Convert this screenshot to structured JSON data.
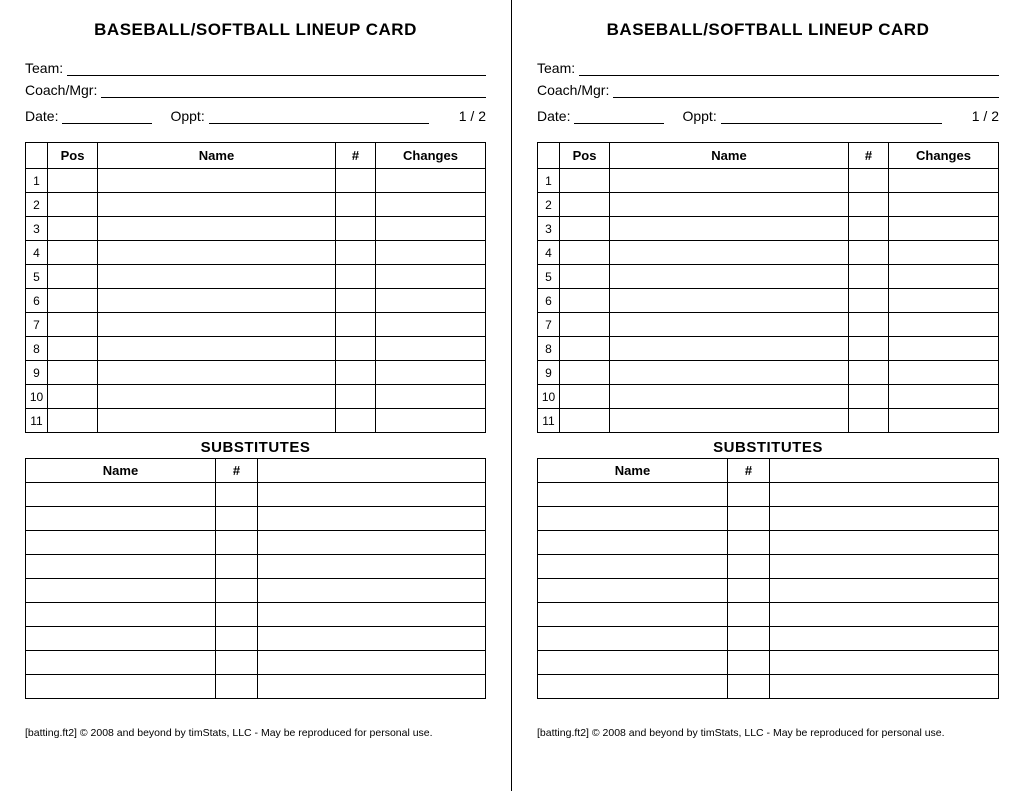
{
  "card": {
    "title": "BASEBALL/SOFTBALL LINEUP CARD",
    "labels": {
      "team": "Team:",
      "coach": "Coach/Mgr:",
      "date": "Date:",
      "oppt": "Oppt:",
      "page": "1 / 2"
    },
    "lineup": {
      "headers": {
        "pos": "Pos",
        "name": "Name",
        "hash": "#",
        "changes": "Changes"
      },
      "rows": [
        "1",
        "2",
        "3",
        "4",
        "5",
        "6",
        "7",
        "8",
        "9",
        "10",
        "11"
      ]
    },
    "subs": {
      "title": "SUBSTITUTES",
      "headers": {
        "name": "Name",
        "hash": "#"
      },
      "row_count": 9
    },
    "footer": "[batting.ft2] © 2008 and beyond by timStats, LLC - May be reproduced for personal use."
  },
  "style": {
    "background_color": "#ffffff",
    "text_color": "#000000",
    "border_color": "#000000",
    "title_fontsize": 17,
    "label_fontsize": 14,
    "cell_fontsize": 12,
    "footer_fontsize": 10.5
  }
}
